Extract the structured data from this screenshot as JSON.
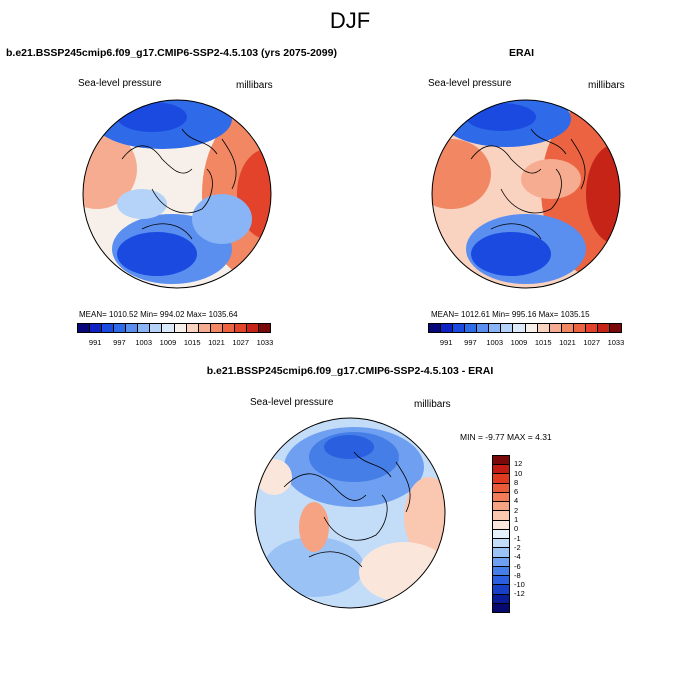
{
  "title": "DJF",
  "left_panel": {
    "header": "b.e21.BSSP245cmip6.f09_g17.CMIP6-SSP2-4.5.103 (yrs 2075-2099)",
    "variable": "Sea-level pressure",
    "units": "millibars",
    "stats": "MEAN= 1010.52   Min= 994.02   Max= 1035.64"
  },
  "right_panel": {
    "header": "ERAI",
    "variable": "Sea-level pressure",
    "units": "millibars",
    "stats": "MEAN= 1012.61   Min= 995.16   Max= 1035.15"
  },
  "diff_panel": {
    "header": "b.e21.BSSP245cmip6.f09_g17.CMIP6-SSP2-4.5.103 - ERAI",
    "variable": "Sea-level pressure",
    "units": "millibars",
    "stats": "MIN =  -9.77 MAX =   4.31"
  },
  "slp_colorbar": {
    "colors": [
      "#08087a",
      "#0f23c2",
      "#1a4ae0",
      "#2f6ae8",
      "#5a8ff0",
      "#89b4f5",
      "#b5d3f8",
      "#dbe9fb",
      "#f7f0ea",
      "#fad2c0",
      "#f6ac90",
      "#f18763",
      "#eb6341",
      "#e2432a",
      "#c72418",
      "#7a0a0a"
    ],
    "ticks": [
      "991",
      "997",
      "1003",
      "1009",
      "1015",
      "1021",
      "1027",
      "1033"
    ]
  },
  "diff_colorbar": {
    "colors": [
      "#7a0a0a",
      "#c21d14",
      "#e03a20",
      "#ea5b38",
      "#f07d58",
      "#f5a383",
      "#fac7b0",
      "#fbe6dc",
      "#e6f0fb",
      "#c3dcf8",
      "#9bc2f5",
      "#6e9ff0",
      "#467ee8",
      "#2a5fe0",
      "#1840c7",
      "#0b1d96",
      "#060a6e"
    ],
    "ticks": [
      "12",
      "10",
      "8",
      "6",
      "4",
      "2",
      "1",
      "0",
      "-1",
      "-2",
      "-4",
      "-6",
      "-8",
      "-10",
      "-12"
    ]
  }
}
